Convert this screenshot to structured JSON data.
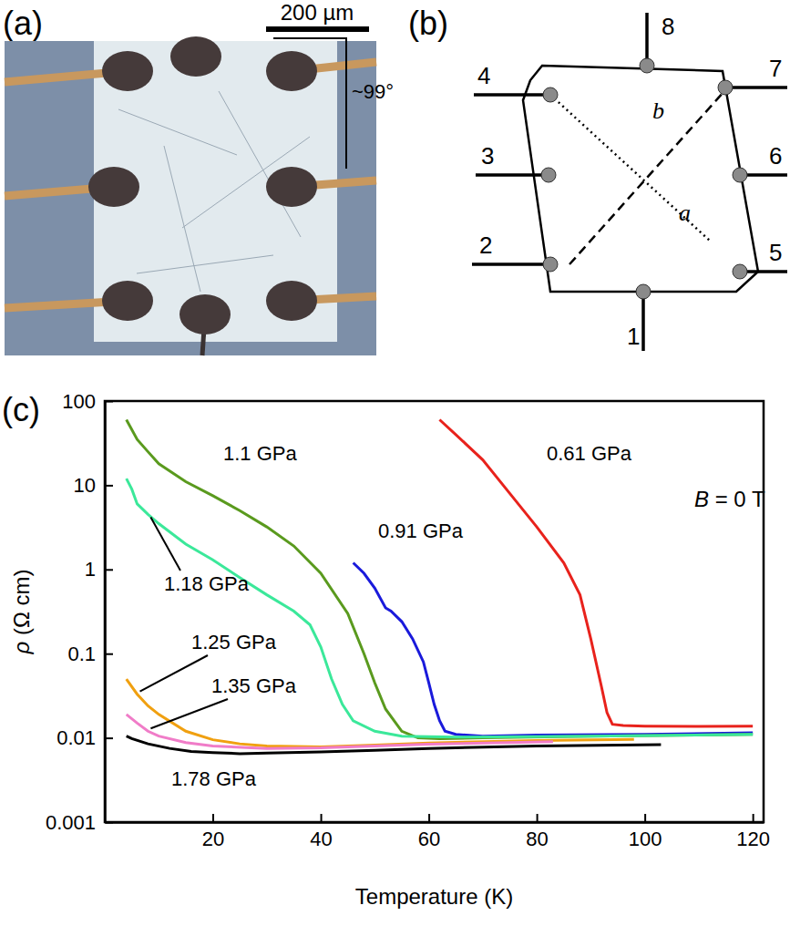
{
  "panels": [
    "(a)",
    "(b)",
    "(c)"
  ],
  "photo": {
    "scale_bar": "200 µm",
    "angle": "~99°"
  },
  "diagram": {
    "contacts": [
      "1",
      "2",
      "3",
      "4",
      "5",
      "6",
      "7",
      "8"
    ],
    "axes": [
      "a",
      "b"
    ]
  },
  "chart_data": {
    "type": "line",
    "x_label": "Temperature (K)",
    "y_label": "ρ (Ω cm)",
    "annotation": "B = 0 T",
    "log": "y",
    "xlim": [
      0,
      122
    ],
    "xticks": [
      20,
      40,
      60,
      80,
      100,
      120
    ],
    "ylim": [
      0.001,
      100
    ],
    "yticks": [
      0.001,
      0.01,
      0.1,
      1,
      10,
      100
    ],
    "series": [
      {
        "name": "0.61 GPa",
        "color": "#e8221c",
        "x": [
          62,
          65,
          70,
          75,
          80,
          85,
          88,
          90,
          92,
          93,
          94,
          96,
          100,
          110,
          120
        ],
        "values": [
          60,
          40,
          20,
          8,
          3.2,
          1.2,
          0.5,
          0.15,
          0.04,
          0.02,
          0.0145,
          0.014,
          0.0138,
          0.0137,
          0.0138
        ]
      },
      {
        "name": "0.91 GPa",
        "color": "#1a1adb",
        "x": [
          46,
          48,
          50,
          52,
          53,
          55,
          57,
          59,
          60,
          61,
          62,
          63,
          65,
          70,
          80,
          100,
          120
        ],
        "values": [
          1.2,
          0.9,
          0.6,
          0.35,
          0.32,
          0.24,
          0.15,
          0.08,
          0.045,
          0.025,
          0.016,
          0.012,
          0.011,
          0.0105,
          0.0108,
          0.011,
          0.0115
        ]
      },
      {
        "name": "1.1 GPa",
        "color": "#5a9a1e",
        "x": [
          4,
          6,
          8,
          10,
          15,
          20,
          25,
          30,
          35,
          40,
          45,
          48,
          50,
          52,
          55,
          58,
          62,
          70,
          90,
          120
        ],
        "values": [
          60,
          35,
          25,
          18,
          11,
          7.5,
          5,
          3.2,
          1.9,
          0.9,
          0.3,
          0.1,
          0.045,
          0.022,
          0.012,
          0.01,
          0.0098,
          0.01,
          0.0105,
          0.011
        ]
      },
      {
        "name": "1.18 GPa",
        "color": "#3be89a",
        "x": [
          4,
          5,
          6,
          8,
          10,
          15,
          20,
          25,
          30,
          35,
          38,
          40,
          42,
          44,
          46,
          50,
          55,
          65,
          90,
          120
        ],
        "values": [
          12,
          9,
          6,
          4.5,
          3.5,
          2,
          1.3,
          0.8,
          0.5,
          0.32,
          0.22,
          0.12,
          0.05,
          0.025,
          0.016,
          0.012,
          0.0105,
          0.0102,
          0.0105,
          0.011
        ]
      },
      {
        "name": "1.25 GPa",
        "color": "#f0a010",
        "x": [
          4,
          6,
          8,
          10,
          15,
          20,
          25,
          30,
          40,
          50,
          60,
          80,
          98
        ],
        "values": [
          0.05,
          0.033,
          0.024,
          0.019,
          0.012,
          0.0095,
          0.0085,
          0.008,
          0.0078,
          0.0082,
          0.0087,
          0.0093,
          0.0096
        ]
      },
      {
        "name": "1.35 GPa",
        "color": "#f07cc8",
        "x": [
          4,
          6,
          8,
          10,
          15,
          20,
          30,
          40,
          50,
          60,
          83
        ],
        "values": [
          0.019,
          0.015,
          0.012,
          0.0105,
          0.0088,
          0.008,
          0.0075,
          0.0076,
          0.008,
          0.0084,
          0.009
        ]
      },
      {
        "name": "1.78 GPa",
        "color": "#000000",
        "x": [
          4,
          5,
          8,
          12,
          16,
          20,
          25,
          30,
          40,
          50,
          60,
          80,
          103
        ],
        "values": [
          0.0105,
          0.0098,
          0.0085,
          0.0075,
          0.0069,
          0.0067,
          0.0065,
          0.0066,
          0.0068,
          0.0071,
          0.0075,
          0.008,
          0.0083
        ]
      }
    ]
  }
}
